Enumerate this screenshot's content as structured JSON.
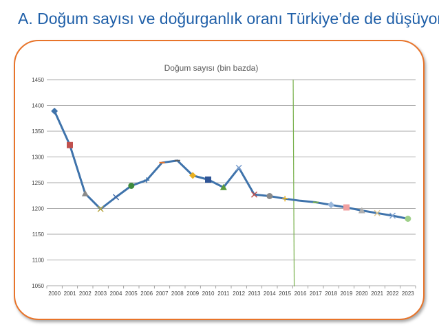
{
  "page": {
    "headline": "A. Doğum sayısı ve doğurganlık oranı Türkiye’de de düşüyor"
  },
  "colors": {
    "headline": "#1f5fa8",
    "panel_border": "#e8742a",
    "series_line": "#3f73ab",
    "gridline": "#8c8c8c",
    "marker_line": "#77b04a"
  },
  "chart_data": {
    "type": "line",
    "title": "Doğum sayısı (bin bazda)",
    "xlabel": "",
    "ylabel": "",
    "categories": [
      "2000",
      "2001",
      "2002",
      "2003",
      "2004",
      "2005",
      "2006",
      "2007",
      "2008",
      "2009",
      "2010",
      "2011",
      "2012",
      "2013",
      "2014",
      "2015",
      "2016",
      "2017",
      "2018",
      "2019",
      "2020",
      "2021",
      "2022",
      "2023"
    ],
    "series": [
      {
        "values": [
          1389,
          1323,
          1229,
          1199,
          1222,
          1244,
          1255,
          1289,
          1293,
          1264,
          1256,
          1241,
          1279,
          1227,
          1224,
          1219,
          1215,
          1212,
          1207,
          1202,
          1196,
          1191,
          1186,
          1180
        ]
      }
    ],
    "ylim": [
      1050,
      1450
    ],
    "yticks": [
      1050,
      1100,
      1150,
      1200,
      1250,
      1300,
      1350,
      1400,
      1450
    ],
    "grid": "horizontal",
    "legend": "none",
    "vertical_marker_year": "2015.6",
    "point_markers": [
      {
        "shape": "diamond",
        "color": "#3f73ab"
      },
      {
        "shape": "square",
        "color": "#c0504d"
      },
      {
        "shape": "triangle",
        "color": "#8a8a8a"
      },
      {
        "shape": "x",
        "color": "#b8a642"
      },
      {
        "shape": "x",
        "color": "#3f6aa8"
      },
      {
        "shape": "circle",
        "color": "#3d8a3d"
      },
      {
        "shape": "plus",
        "color": "#3f73ab"
      },
      {
        "shape": "dash",
        "color": "#e8742a"
      },
      {
        "shape": "dash",
        "color": "#5b5b5b"
      },
      {
        "shape": "diamond",
        "color": "#e8b020"
      },
      {
        "shape": "square",
        "color": "#2f5597"
      },
      {
        "shape": "triangle",
        "color": "#5b9a3d"
      },
      {
        "shape": "x",
        "color": "#7da0cf"
      },
      {
        "shape": "x",
        "color": "#c0504d"
      },
      {
        "shape": "circle",
        "color": "#8a8a8a"
      },
      {
        "shape": "plus",
        "color": "#e8b020"
      },
      {
        "shape": "dash",
        "color": "#3f73ab"
      },
      {
        "shape": "dash",
        "color": "#77b04a"
      },
      {
        "shape": "diamond",
        "color": "#9ab8dc"
      },
      {
        "shape": "square",
        "color": "#f0a0a0"
      },
      {
        "shape": "triangle",
        "color": "#b0b0b0"
      },
      {
        "shape": "x",
        "color": "#e0c890"
      },
      {
        "shape": "x",
        "color": "#7da0cf"
      },
      {
        "shape": "circle",
        "color": "#9fd08a"
      }
    ]
  }
}
